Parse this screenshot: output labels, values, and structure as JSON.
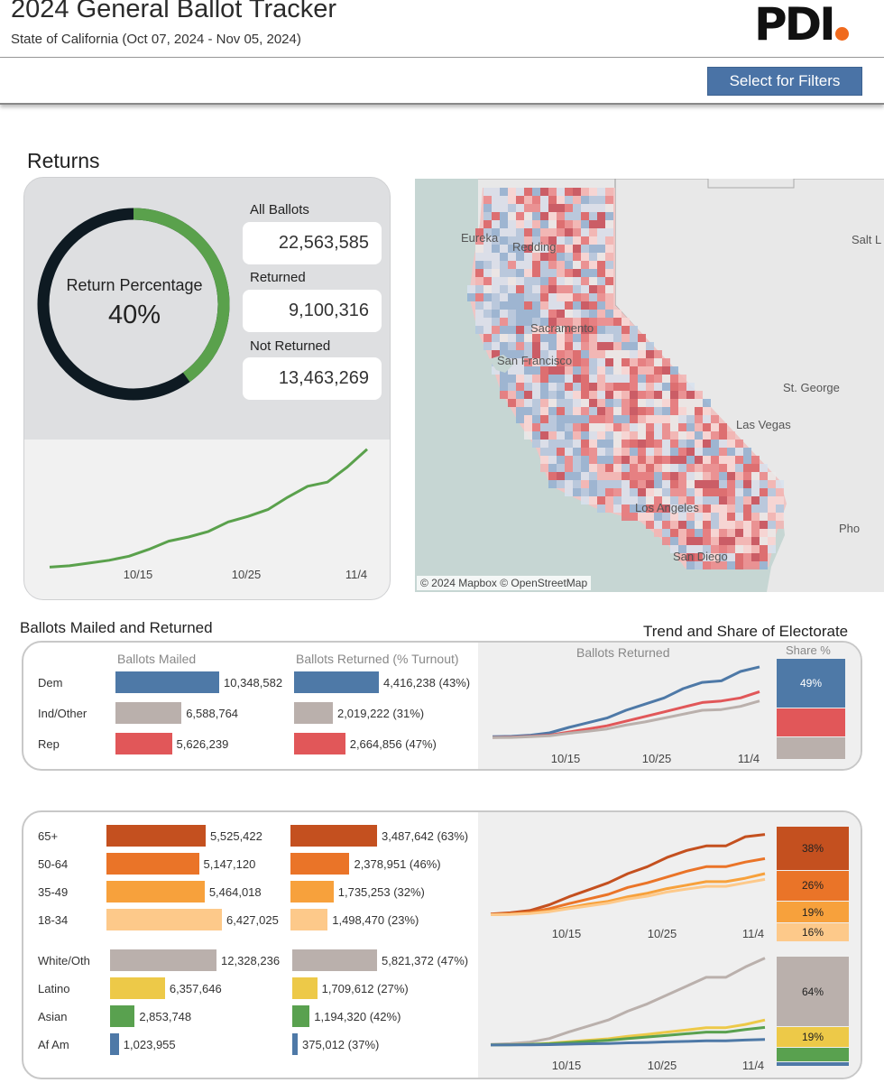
{
  "header": {
    "title": "2024 General Ballot Tracker",
    "subtitle": "State of California (Oct 07, 2024 - Nov 05, 2024)",
    "logo_text": "PDI"
  },
  "filters": {
    "button_label": "Select for Filters"
  },
  "returns": {
    "section_title": "Returns",
    "ring_label": "Return Percentage",
    "ring_value": "40%",
    "return_fraction": 0.4,
    "stats": [
      {
        "label": "All Ballots",
        "value": "22,563,585"
      },
      {
        "label": "Returned",
        "value": "9,100,316"
      },
      {
        "label": "Not Returned",
        "value": "13,463,269"
      }
    ],
    "axis_ticks": [
      "10/15",
      "10/25",
      "11/4"
    ]
  },
  "map": {
    "credit": "© 2024 Mapbox  © OpenStreetMap",
    "cities": [
      "Eureka",
      "Redding",
      "Sacramento",
      "San Francisco",
      "Las Vegas",
      "St. George",
      "Salt L",
      "Los Angeles",
      "San Diego",
      "Pho"
    ]
  },
  "party": {
    "section_title": "Ballots Mailed and Returned",
    "trend_title": "Trend and Share of Electorate",
    "col_mailed": "Ballots Mailed",
    "col_returned": "Ballots Returned (% Turnout)",
    "chart_title": "Ballots Returned",
    "share_title": "Share %",
    "rows": [
      {
        "label": "Dem",
        "mailed": 10348582,
        "mailed_text": "10,348,582",
        "returned": 4416238,
        "returned_text": "4,416,238 (43%)",
        "color": "#4e79a7"
      },
      {
        "label": "Ind/Other",
        "mailed": 6588764,
        "mailed_text": "6,588,764",
        "returned": 2019222,
        "returned_text": "2,019,222 (31%)",
        "color": "#bab0ac"
      },
      {
        "label": "Rep",
        "mailed": 5626239,
        "mailed_text": "5,626,239",
        "returned": 2664856,
        "returned_text": "2,664,856 (47%)",
        "color": "#e15759"
      }
    ],
    "share": [
      {
        "name": "Dem",
        "value": 49,
        "label": "49%",
        "color": "#4e79a7"
      },
      {
        "name": "Rep",
        "value": 29,
        "label": "",
        "color": "#e15759"
      },
      {
        "name": "Ind/Other",
        "value": 22,
        "label": "",
        "color": "#bab0ac"
      }
    ],
    "axis_ticks": [
      "10/15",
      "10/25",
      "11/4"
    ]
  },
  "age": {
    "rows": [
      {
        "label": "65+",
        "mailed": 5525422,
        "mailed_text": "5,525,422",
        "returned": 3487642,
        "returned_text": "3,487,642 (63%)",
        "color": "#c4501f"
      },
      {
        "label": "50-64",
        "mailed": 5147120,
        "mailed_text": "5,147,120",
        "returned": 2378951,
        "returned_text": "2,378,951 (46%)",
        "color": "#ea7428"
      },
      {
        "label": "35-49",
        "mailed": 5464018,
        "mailed_text": "5,464,018",
        "returned": 1735253,
        "returned_text": "1,735,253 (32%)",
        "color": "#f7a13c"
      },
      {
        "label": "18-34",
        "mailed": 6427025,
        "mailed_text": "6,427,025",
        "returned": 1498470,
        "returned_text": "1,498,470 (23%)",
        "color": "#fdc98a"
      }
    ],
    "share": [
      {
        "name": "65+",
        "value": 38,
        "label": "38%",
        "color": "#c4501f"
      },
      {
        "name": "50-64",
        "value": 26,
        "label": "26%",
        "color": "#ea7428"
      },
      {
        "name": "35-49",
        "value": 19,
        "label": "19%",
        "color": "#f7a13c"
      },
      {
        "name": "18-34",
        "value": 16,
        "label": "16%",
        "color": "#fdc98a"
      }
    ],
    "axis_ticks": [
      "10/15",
      "10/25",
      "11/4"
    ]
  },
  "race": {
    "rows": [
      {
        "label": "White/Oth",
        "mailed": 12328236,
        "mailed_text": "12,328,236",
        "returned": 5821372,
        "returned_text": "5,821,372 (47%)",
        "color": "#bab0ac"
      },
      {
        "label": "Latino",
        "mailed": 6357646,
        "mailed_text": "6,357,646",
        "returned": 1709612,
        "returned_text": "1,709,612 (27%)",
        "color": "#edc948"
      },
      {
        "label": "Asian",
        "mailed": 2853748,
        "mailed_text": "2,853,748",
        "returned": 1194320,
        "returned_text": "1,194,320 (42%)",
        "color": "#59a14f"
      },
      {
        "label": "Af Am",
        "mailed": 1023955,
        "mailed_text": "1,023,955",
        "returned": 375012,
        "returned_text": "375,012 (37%)",
        "color": "#4e79a7"
      }
    ],
    "share": [
      {
        "name": "White/Oth",
        "value": 64,
        "label": "64%",
        "color": "#bab0ac"
      },
      {
        "name": "Latino",
        "value": 19,
        "label": "19%",
        "color": "#edc948"
      },
      {
        "name": "Asian",
        "value": 13,
        "label": "",
        "color": "#59a14f"
      },
      {
        "name": "Af Am",
        "value": 4,
        "label": "",
        "color": "#4e79a7"
      }
    ],
    "axis_ticks": [
      "10/15",
      "10/25",
      "11/4"
    ]
  },
  "chart_data": [
    {
      "type": "line",
      "x": [
        "10/07",
        "10/09",
        "10/11",
        "10/13",
        "10/15",
        "10/17",
        "10/19",
        "10/21",
        "10/23",
        "10/25",
        "10/27",
        "10/29",
        "10/31",
        "11/02",
        "11/03",
        "11/04",
        "11/05"
      ],
      "series": [
        {
          "values": [
            0.3,
            0.4,
            0.6,
            0.8,
            1.1,
            1.6,
            2.2,
            2.5,
            2.9,
            3.6,
            4.0,
            4.5,
            5.4,
            6.2,
            6.5,
            7.6,
            8.9
          ],
          "color": "#5aa14c"
        }
      ],
      "ylim": [
        0,
        10
      ]
    },
    {
      "type": "line",
      "x": [
        "10/07",
        "10/10",
        "10/13",
        "10/15",
        "10/17",
        "10/20",
        "10/22",
        "10/25",
        "10/27",
        "10/29",
        "10/31",
        "11/02",
        "11/03",
        "11/04",
        "11/05"
      ],
      "series": [
        {
          "name": "Dem",
          "values": [
            0.1,
            0.12,
            0.2,
            0.35,
            0.7,
            1.0,
            1.3,
            1.8,
            2.2,
            2.6,
            3.2,
            3.6,
            3.7,
            4.3,
            4.6
          ],
          "color": "#4e79a7"
        },
        {
          "name": "Rep",
          "values": [
            0.05,
            0.07,
            0.12,
            0.2,
            0.4,
            0.6,
            0.8,
            1.1,
            1.4,
            1.7,
            2.0,
            2.3,
            2.4,
            2.6,
            3.0
          ],
          "color": "#e15759"
        },
        {
          "name": "Ind/Other",
          "values": [
            0.04,
            0.05,
            0.1,
            0.16,
            0.32,
            0.45,
            0.6,
            0.85,
            1.05,
            1.3,
            1.55,
            1.8,
            1.85,
            2.05,
            2.4
          ],
          "color": "#bab0ac"
        }
      ],
      "ylim": [
        0,
        5
      ]
    },
    {
      "type": "line",
      "x": [
        "10/07",
        "10/10",
        "10/13",
        "10/15",
        "10/17",
        "10/20",
        "10/22",
        "10/25",
        "10/27",
        "10/29",
        "10/31",
        "11/02",
        "11/03",
        "11/04",
        "11/05"
      ],
      "series": [
        {
          "name": "65+",
          "values": [
            0.05,
            0.1,
            0.2,
            0.45,
            0.8,
            1.1,
            1.4,
            1.8,
            2.1,
            2.5,
            2.8,
            3.0,
            3.0,
            3.4,
            3.5
          ],
          "color": "#c4501f"
        },
        {
          "name": "50-64",
          "values": [
            0.03,
            0.06,
            0.12,
            0.28,
            0.5,
            0.7,
            0.9,
            1.2,
            1.4,
            1.65,
            1.9,
            2.1,
            2.1,
            2.3,
            2.45
          ],
          "color": "#ea7428"
        },
        {
          "name": "35-49",
          "values": [
            0.02,
            0.04,
            0.08,
            0.18,
            0.33,
            0.48,
            0.6,
            0.8,
            0.95,
            1.15,
            1.3,
            1.45,
            1.45,
            1.6,
            1.8
          ],
          "color": "#f7a13c"
        },
        {
          "name": "18-34",
          "values": [
            0.02,
            0.03,
            0.07,
            0.15,
            0.28,
            0.4,
            0.52,
            0.7,
            0.82,
            1.0,
            1.13,
            1.25,
            1.25,
            1.4,
            1.55
          ],
          "color": "#fdc98a"
        }
      ],
      "ylim": [
        0,
        3.6
      ]
    },
    {
      "type": "line",
      "x": [
        "10/07",
        "10/10",
        "10/13",
        "10/15",
        "10/17",
        "10/20",
        "10/22",
        "10/25",
        "10/27",
        "10/29",
        "10/31",
        "11/02",
        "11/03",
        "11/04",
        "11/05"
      ],
      "series": [
        {
          "name": "White/Oth",
          "values": [
            0.05,
            0.1,
            0.2,
            0.45,
            0.9,
            1.3,
            1.7,
            2.3,
            2.8,
            3.4,
            4.0,
            4.6,
            4.6,
            5.3,
            5.9
          ],
          "color": "#bab0ac"
        },
        {
          "name": "Latino",
          "values": [
            0.02,
            0.03,
            0.05,
            0.12,
            0.23,
            0.33,
            0.43,
            0.6,
            0.73,
            0.88,
            1.02,
            1.18,
            1.18,
            1.4,
            1.7
          ],
          "color": "#edc948"
        },
        {
          "name": "Asian",
          "values": [
            0.01,
            0.02,
            0.04,
            0.09,
            0.17,
            0.25,
            0.33,
            0.45,
            0.55,
            0.66,
            0.77,
            0.88,
            0.88,
            1.05,
            1.2
          ],
          "color": "#59a14f"
        },
        {
          "name": "Af Am",
          "values": [
            0.005,
            0.01,
            0.015,
            0.03,
            0.06,
            0.09,
            0.11,
            0.15,
            0.18,
            0.22,
            0.25,
            0.29,
            0.29,
            0.34,
            0.38
          ],
          "color": "#4e79a7"
        }
      ],
      "ylim": [
        0,
        6
      ]
    }
  ]
}
